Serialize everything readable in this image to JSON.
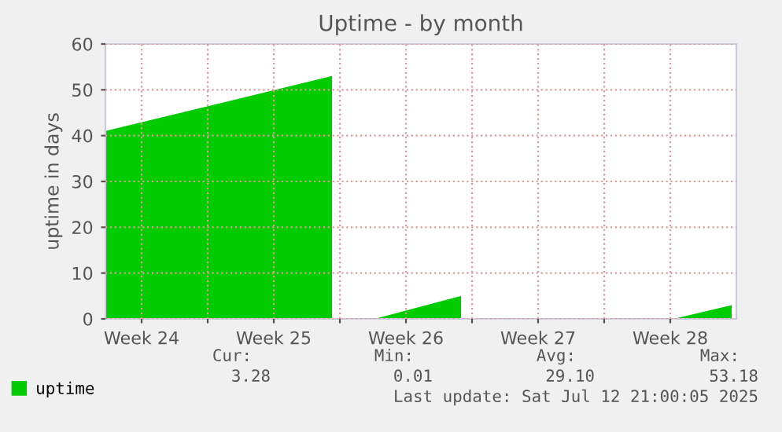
{
  "chart_data": {
    "type": "area",
    "title": "Uptime - by month",
    "ylabel": "uptime in days",
    "x": [
      "2025-06-10T14:00",
      "2025-06-22T14:00",
      "2025-06-22T15:00",
      "2025-06-24T20:00",
      "2025-06-29T10:00",
      "2025-06-29T11:00",
      "2025-07-10T16:00",
      "2025-07-13T18:00"
    ],
    "series": [
      {
        "name": "uptime",
        "color": "#00cc00",
        "values": [
          41,
          53,
          null,
          0,
          5,
          null,
          0,
          3
        ]
      }
    ],
    "xlim": [
      "2025-06-10T14:00",
      "2025-07-14T00:00"
    ],
    "xticks": [
      {
        "value": "2025-06-12T12:00",
        "label": "Week 24"
      },
      {
        "value": "2025-06-16T00:00",
        "label": null
      },
      {
        "value": "2025-06-19T12:00",
        "label": "Week 25"
      },
      {
        "value": "2025-06-23T00:00",
        "label": null
      },
      {
        "value": "2025-06-26T12:00",
        "label": "Week 26"
      },
      {
        "value": "2025-06-30T00:00",
        "label": null
      },
      {
        "value": "2025-07-03T12:00",
        "label": "Week 27"
      },
      {
        "value": "2025-07-07T00:00",
        "label": null
      },
      {
        "value": "2025-07-10T12:00",
        "label": "Week 28"
      }
    ],
    "ylim": [
      0,
      60
    ],
    "yticks": [
      0,
      10,
      20,
      30,
      40,
      50,
      60
    ],
    "grid": true,
    "legend": "bottom left",
    "annotations": [
      "Cur:",
      "Min:",
      "Avg:",
      "Max:",
      "3.28",
      "0.01",
      "29.10",
      "53.18",
      "Last update: Sat Jul 12 21:00:05 2025"
    ]
  }
}
